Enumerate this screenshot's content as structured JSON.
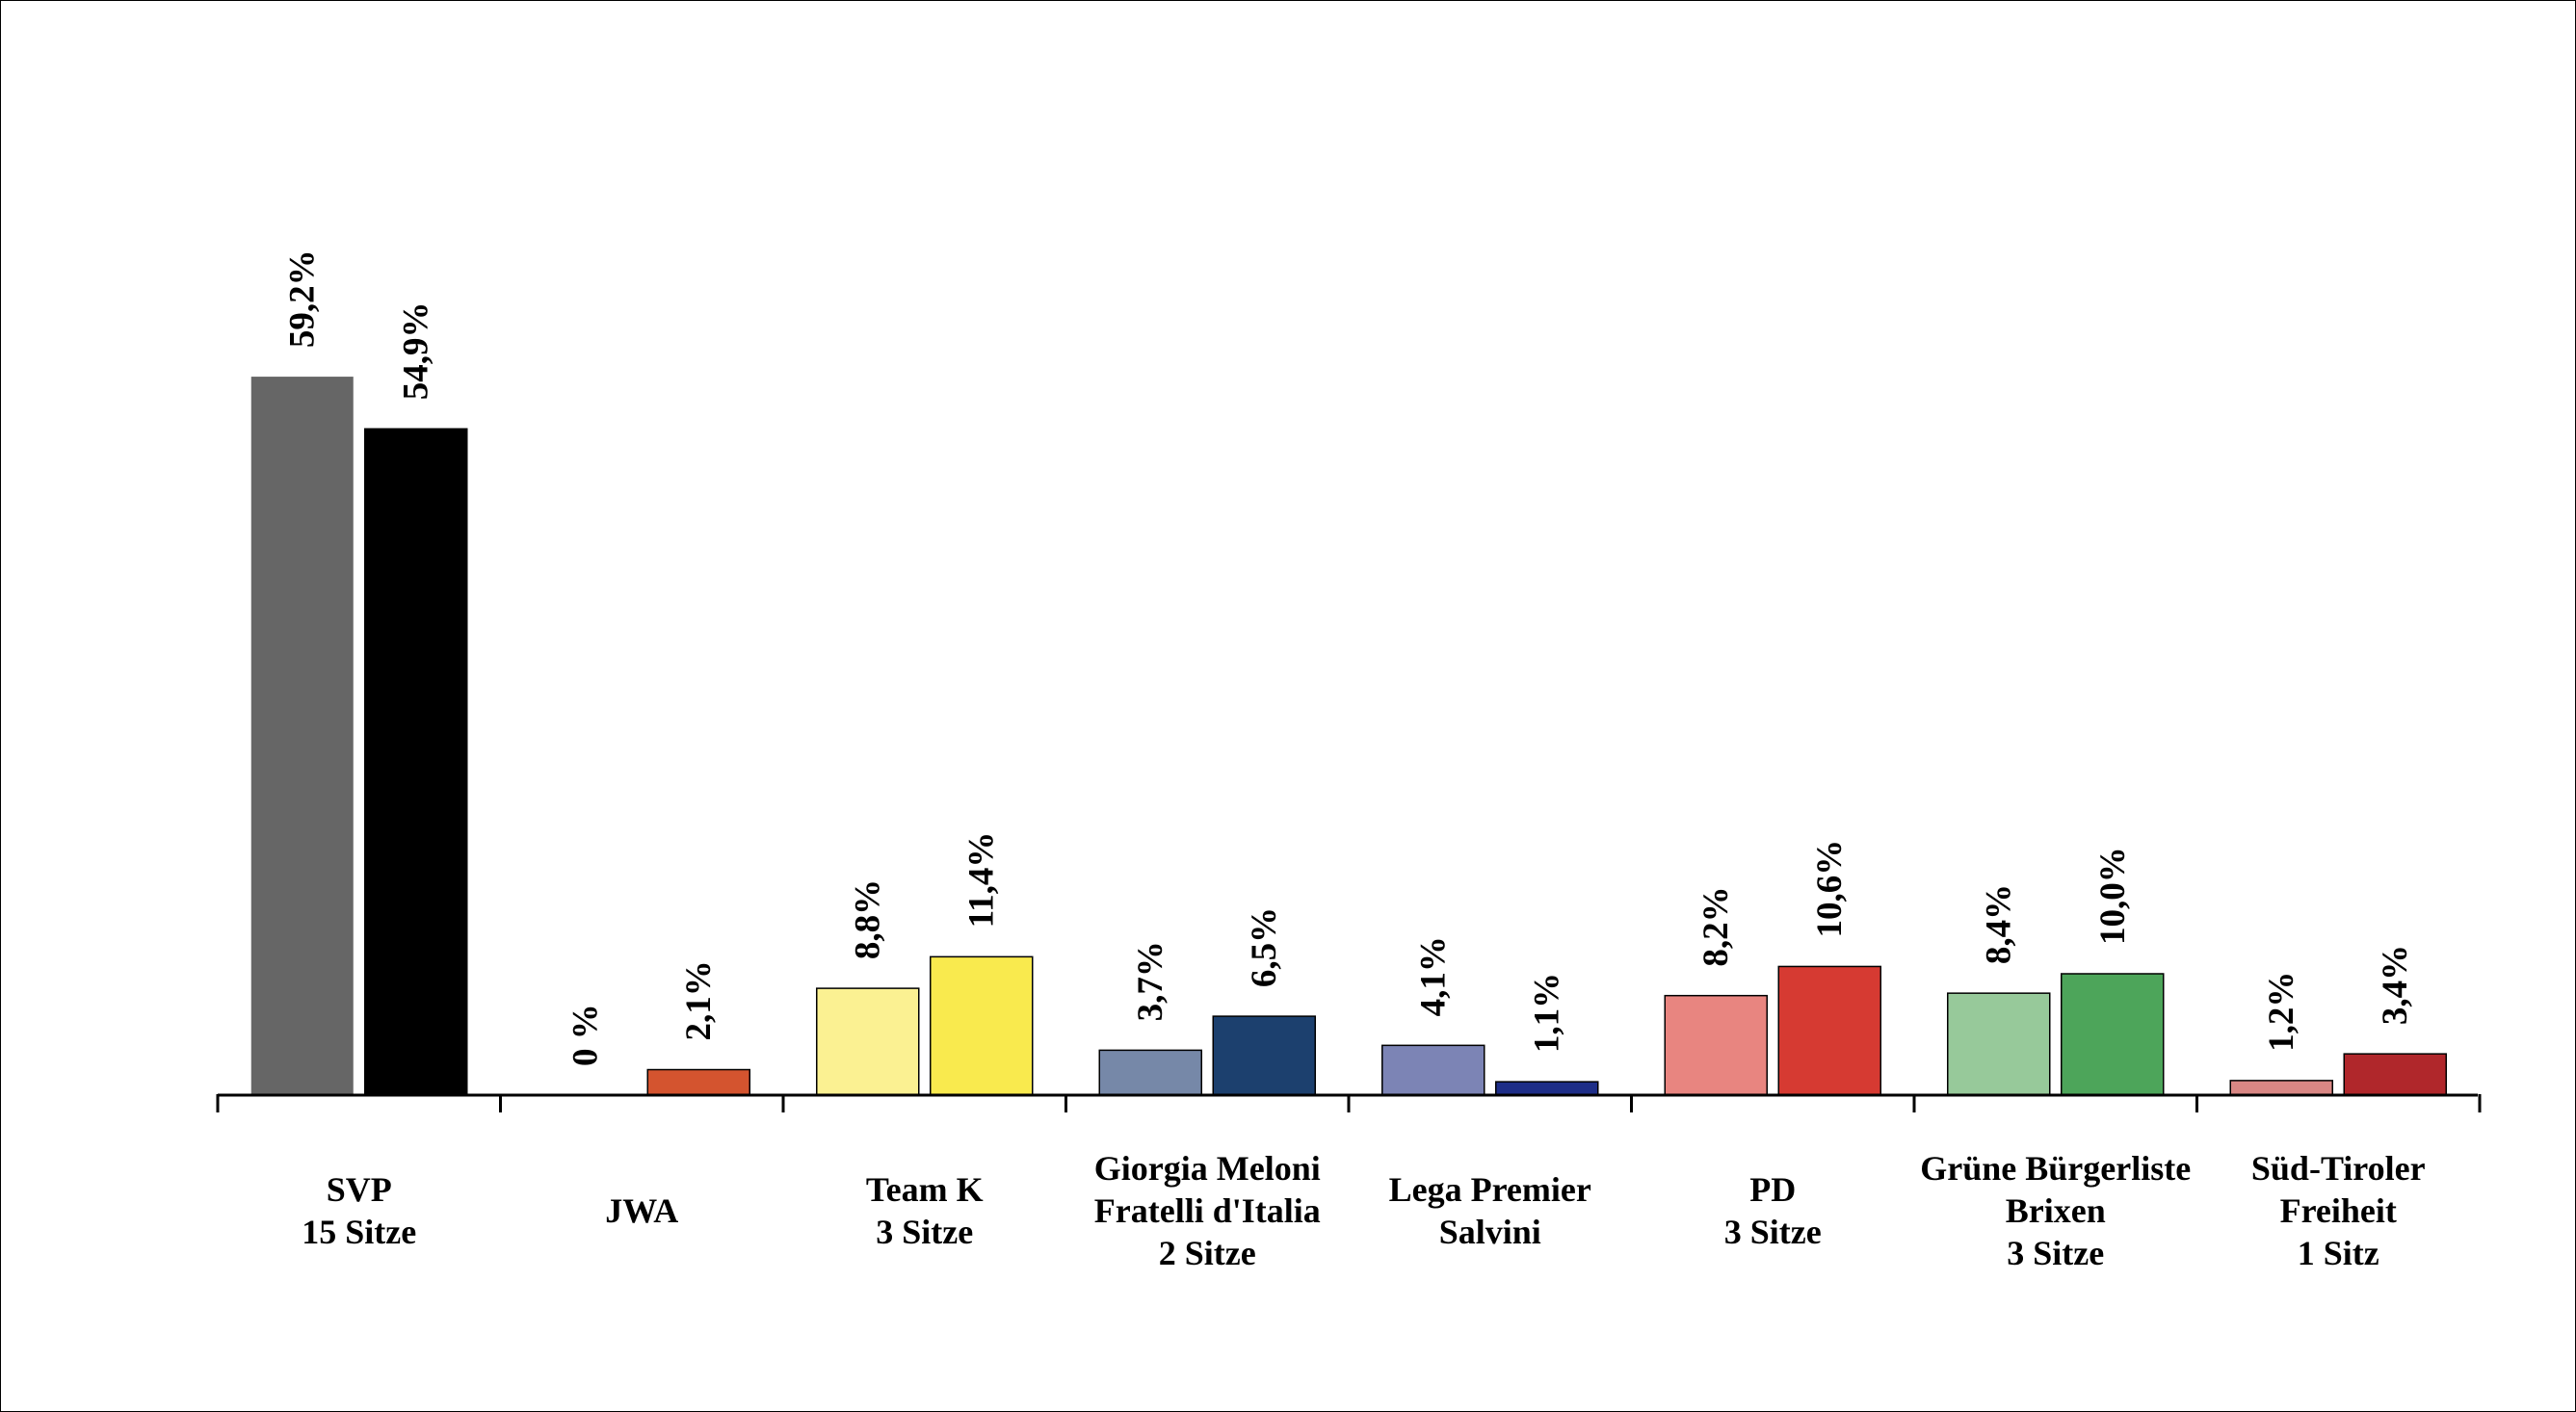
{
  "chart_data": {
    "type": "bar",
    "title": "",
    "xlabel": "",
    "ylabel": "",
    "ylim": [
      0,
      60
    ],
    "grid": false,
    "legend": "none",
    "categories": [
      {
        "lines": [
          "SVP",
          "15 Sitze"
        ]
      },
      {
        "lines": [
          "JWA"
        ]
      },
      {
        "lines": [
          "Team K",
          "3 Sitze"
        ]
      },
      {
        "lines": [
          "Giorgia Meloni",
          "Fratelli d'Italia",
          "2 Sitze"
        ]
      },
      {
        "lines": [
          "Lega Premier",
          "Salvini"
        ]
      },
      {
        "lines": [
          "PD",
          "3 Sitze"
        ]
      },
      {
        "lines": [
          "Grüne Bürgerliste",
          "Brixen",
          "3 Sitze"
        ]
      },
      {
        "lines": [
          "Süd-Tiroler",
          "Freiheit",
          "1 Sitz"
        ]
      }
    ],
    "series": [
      {
        "values": [
          59.2,
          0,
          8.8,
          3.7,
          4.1,
          8.2,
          8.4,
          1.2
        ],
        "labels": [
          "59,2%",
          "0 %",
          "8,8%",
          "3,7%",
          "4,1%",
          "8,2%",
          "8,4%",
          "1,2%"
        ],
        "colors": [
          "#666666",
          "#d4542f",
          "#fbf192",
          "#7688a8",
          "#7c84b5",
          "#e88580",
          "#97c99a",
          "#d98784"
        ]
      },
      {
        "values": [
          54.9,
          2.1,
          11.4,
          6.5,
          1.1,
          10.6,
          10.0,
          3.4
        ],
        "labels": [
          "54,9%",
          "2,1%",
          "11,4%",
          "6,5%",
          "1,1%",
          "10,6%",
          "10,0%",
          "3,4%"
        ],
        "colors": [
          "#000000",
          "#d4542f",
          "#f9ea4e",
          "#1c406e",
          "#1e2e88",
          "#d63a32",
          "#4da55a",
          "#b0272b"
        ]
      }
    ]
  }
}
